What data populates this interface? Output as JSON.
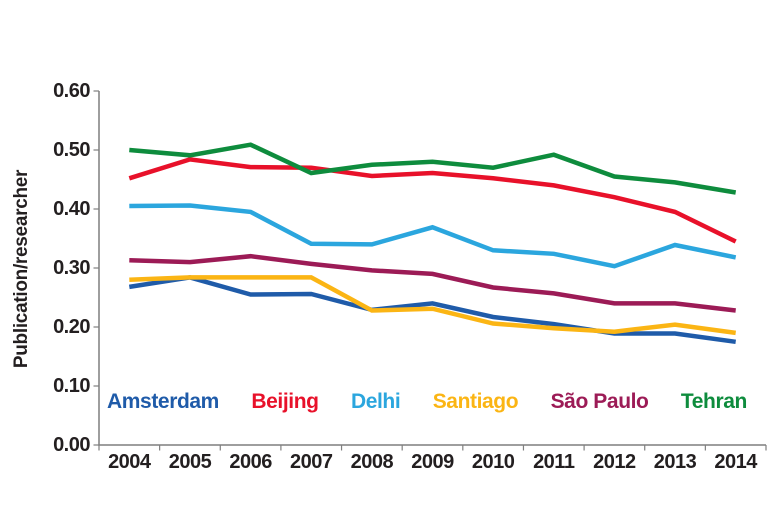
{
  "chart_data": {
    "type": "line",
    "title": "",
    "xlabel": "",
    "ylabel": "Publication/researcher",
    "categories": [
      "2004",
      "2005",
      "2006",
      "2007",
      "2008",
      "2009",
      "2010",
      "2011",
      "2012",
      "2013",
      "2014"
    ],
    "y_tick_labels": [
      "0.00",
      "0.10",
      "0.20",
      "0.30",
      "0.40",
      "0.50",
      "0.60"
    ],
    "ylim": [
      0.0,
      0.6
    ],
    "grid": false,
    "legend_position": "bottom-inside",
    "series": [
      {
        "name": "Amsterdam",
        "color": "#1f5ba9",
        "values": [
          0.268,
          0.284,
          0.255,
          0.256,
          0.229,
          0.24,
          0.217,
          0.205,
          0.189,
          0.189,
          0.175
        ]
      },
      {
        "name": "Beijing",
        "color": "#e8112a",
        "values": [
          0.452,
          0.484,
          0.471,
          0.47,
          0.456,
          0.461,
          0.452,
          0.44,
          0.42,
          0.395,
          0.345
        ]
      },
      {
        "name": "Delhi",
        "color": "#2ba6de",
        "values": [
          0.405,
          0.406,
          0.395,
          0.341,
          0.34,
          0.369,
          0.33,
          0.324,
          0.303,
          0.339,
          0.318
        ]
      },
      {
        "name": "Santiago",
        "color": "#fbb514",
        "values": [
          0.28,
          0.284,
          0.284,
          0.284,
          0.228,
          0.231,
          0.206,
          0.198,
          0.192,
          0.204,
          0.19
        ]
      },
      {
        "name": "São Paulo",
        "color": "#9c1b56",
        "values": [
          0.313,
          0.31,
          0.32,
          0.307,
          0.296,
          0.29,
          0.267,
          0.257,
          0.24,
          0.24,
          0.228
        ]
      },
      {
        "name": "Tehran",
        "color": "#0e8c3d",
        "values": [
          0.5,
          0.491,
          0.509,
          0.461,
          0.475,
          0.48,
          0.47,
          0.492,
          0.455,
          0.445,
          0.428
        ]
      }
    ],
    "axis_color": "#7f7f7f",
    "text_color": "#231f20",
    "line_width": 4.5
  }
}
